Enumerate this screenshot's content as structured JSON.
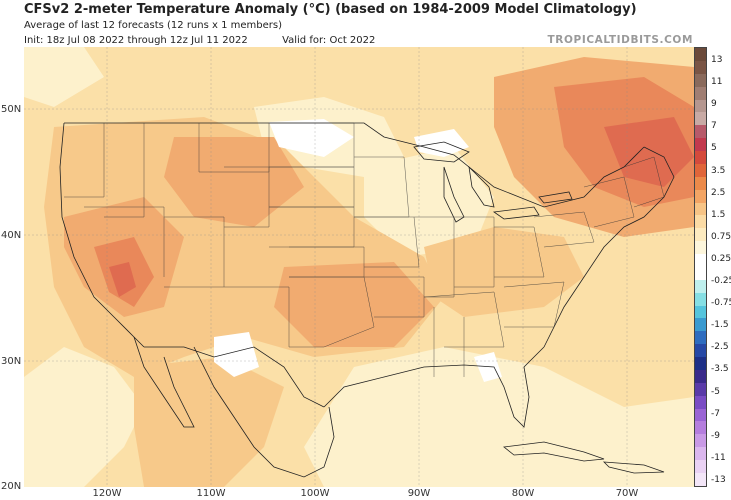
{
  "header": {
    "title": "CFSv2 2-meter Temperature Anomaly (°C) (based on 1984-2009 Model Climatology)",
    "subtitle": "Average of last 12 forecasts (12 runs x 1 members)",
    "init": "Init: 18z Jul 08 2022 through 12z Jul 11 2022",
    "valid": "Valid for: Oct 2022",
    "brand": "TROPICALTIDBITS.COM"
  },
  "axes": {
    "lat_labels": [
      "50N",
      "40N",
      "30N",
      "20N"
    ],
    "lon_labels": [
      "120W",
      "110W",
      "100W",
      "90W",
      "80W",
      "70W"
    ]
  },
  "colorbar": {
    "labels": [
      "13",
      "11",
      "9",
      "7",
      "5",
      "3.5",
      "2.5",
      "1.5",
      "0.75",
      "0.25",
      "-0.25",
      "-0.75",
      "-1.5",
      "-2.5",
      "-3.5",
      "-5",
      "-7",
      "-9",
      "-11",
      "-13"
    ],
    "colors": [
      "#6b4a3a",
      "#7a5545",
      "#8a6a5c",
      "#a07e73",
      "#b59790",
      "#c8aaa5",
      "#b75a6a",
      "#c23a4e",
      "#d44a3c",
      "#e0653a",
      "#ec8a4a",
      "#f3a565",
      "#f7c486",
      "#fbdba5",
      "#fdebc0",
      "#fdf6dc",
      "#ffffff",
      "#ffffff",
      "#bff0ee",
      "#86dfe4",
      "#55c4dc",
      "#3a9ad0",
      "#2e6cbf",
      "#2648a5",
      "#1d2f86",
      "#3a2a8a",
      "#5a3aa8",
      "#7a4cc4",
      "#9a64d4",
      "#b57ede",
      "#c99ae6",
      "#dbb7ee",
      "#ead2f4",
      "#f3e6f8"
    ],
    "map_colors": {
      "pale": "#fdf1cc",
      "light": "#fbe0a8",
      "mid": "#f7c98a",
      "orange": "#f1ab70",
      "deep": "#e9885a",
      "red": "#df6b50"
    }
  }
}
